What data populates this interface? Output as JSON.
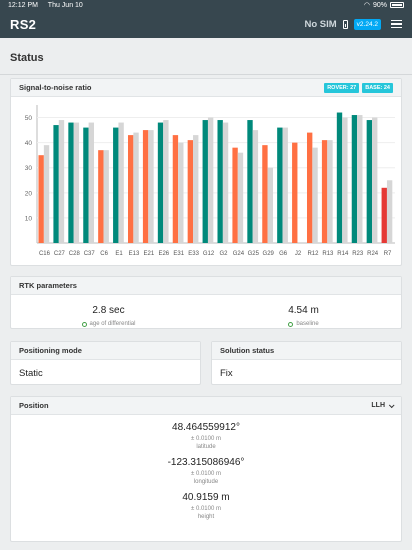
{
  "status_bar": {
    "time": "12:12 PM",
    "date": "Thu Jun 10",
    "battery": "90%"
  },
  "app": {
    "title": "RS2",
    "sim": "No SIM",
    "version": "v2.24.2"
  },
  "page": {
    "title": "Status"
  },
  "snr": {
    "title": "Signal-to-noise ratio",
    "rover_badge": "ROVER: 27",
    "base_badge": "BASE: 24",
    "chart_data": {
      "type": "bar",
      "ylim": [
        0,
        55
      ],
      "yticks": [
        10,
        20,
        30,
        40,
        50
      ],
      "categories": [
        "C16",
        "C27",
        "C28",
        "C37",
        "C6",
        "E1",
        "E13",
        "E21",
        "E26",
        "E31",
        "E33",
        "G12",
        "G2",
        "G24",
        "G25",
        "G29",
        "G6",
        "J2",
        "R12",
        "R13",
        "R14",
        "R23",
        "R24",
        "R7"
      ],
      "series": [
        {
          "role": "rover",
          "values": [
            35,
            47,
            48,
            46,
            37,
            46,
            43,
            45,
            48,
            43,
            41,
            49,
            49,
            38,
            49,
            39,
            46,
            40,
            44,
            41,
            52,
            51,
            49,
            22
          ],
          "colors": [
            "#ff7043",
            "#00897b",
            "#00897b",
            "#00897b",
            "#ff7043",
            "#00897b",
            "#ff7043",
            "#ff7043",
            "#00897b",
            "#ff7043",
            "#ff7043",
            "#00897b",
            "#00897b",
            "#ff7043",
            "#00897b",
            "#ff7043",
            "#00897b",
            "#ff7043",
            "#ff7043",
            "#ff7043",
            "#00897b",
            "#00897b",
            "#00897b",
            "#e53935"
          ]
        },
        {
          "role": "base",
          "values": [
            39,
            49,
            48,
            48,
            37,
            48,
            44,
            45,
            49,
            40,
            43,
            50,
            48,
            36,
            45,
            30,
            46,
            0,
            38,
            41,
            50,
            51,
            50,
            25
          ],
          "color": "#d6d6d6"
        }
      ]
    }
  },
  "rtk": {
    "title": "RTK parameters",
    "age_value": "2.8 sec",
    "age_label": "age of differential",
    "baseline_value": "4.54 m",
    "baseline_label": "baseline"
  },
  "positioning": {
    "title": "Positioning mode",
    "value": "Static"
  },
  "solution": {
    "title": "Solution status",
    "value": "Fix"
  },
  "position": {
    "title": "Position",
    "format": "LLH",
    "latitude": {
      "value": "48.464559912°",
      "accuracy": "± 0.0100 m",
      "label": "latitude"
    },
    "longitude": {
      "value": "-123.315086946°",
      "accuracy": "± 0.0100 m",
      "label": "longitude"
    },
    "height": {
      "value": "40.9159 m",
      "accuracy": "± 0.0100 m",
      "label": "height"
    }
  }
}
